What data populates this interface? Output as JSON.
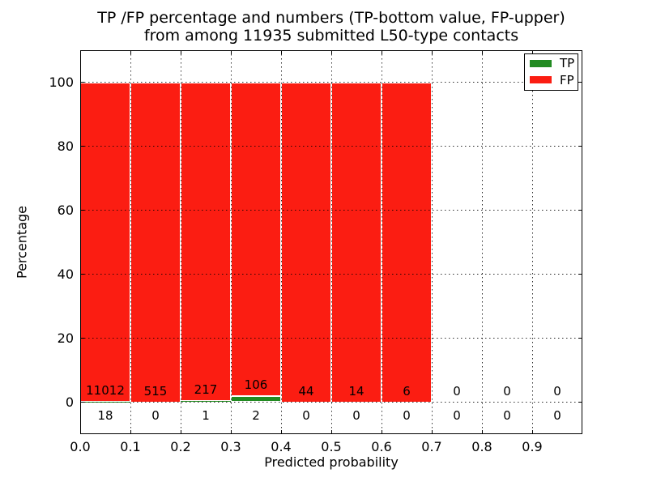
{
  "title": {
    "line1": "TP /FP percentage and numbers (TP-bottom value, FP-upper)",
    "line2": "from among 11935 submitted L50-type contacts"
  },
  "chart_data": {
    "type": "bar",
    "stacked": true,
    "title": "TP /FP percentage and numbers (TP-bottom value, FP-upper) from among 11935 submitted L50-type contacts",
    "xlabel": "Predicted probability",
    "ylabel": "Percentage",
    "total_submitted": 11935,
    "bin_edges": [
      0.0,
      0.1,
      0.2,
      0.3,
      0.4,
      0.5,
      0.6,
      0.7,
      0.8,
      0.9,
      1.0
    ],
    "series": [
      {
        "name": "TP",
        "color": "#228b22",
        "counts": [
          18,
          0,
          1,
          2,
          0,
          0,
          0,
          0,
          0,
          0
        ]
      },
      {
        "name": "FP",
        "color": "#fb1d12",
        "counts": [
          11012,
          515,
          217,
          106,
          44,
          14,
          6,
          0,
          0,
          0
        ]
      }
    ],
    "bars_normalized_to_percent": 100,
    "xlim": [
      0.0,
      1.0
    ],
    "ylim": [
      -10,
      110
    ],
    "xticks": [
      "0.0",
      "0.1",
      "0.2",
      "0.3",
      "0.4",
      "0.5",
      "0.6",
      "0.7",
      "0.8",
      "0.9"
    ],
    "yticks": [
      "0",
      "20",
      "40",
      "60",
      "80",
      "100"
    ],
    "ytick_values": [
      0,
      20,
      40,
      60,
      80,
      100
    ],
    "grid": {
      "style": "dotted",
      "color": "#000000",
      "above_bars": true
    },
    "bar_edge_color": "#ffffff",
    "legend": {
      "position": "upper right",
      "entries": [
        "TP",
        "FP"
      ]
    }
  }
}
